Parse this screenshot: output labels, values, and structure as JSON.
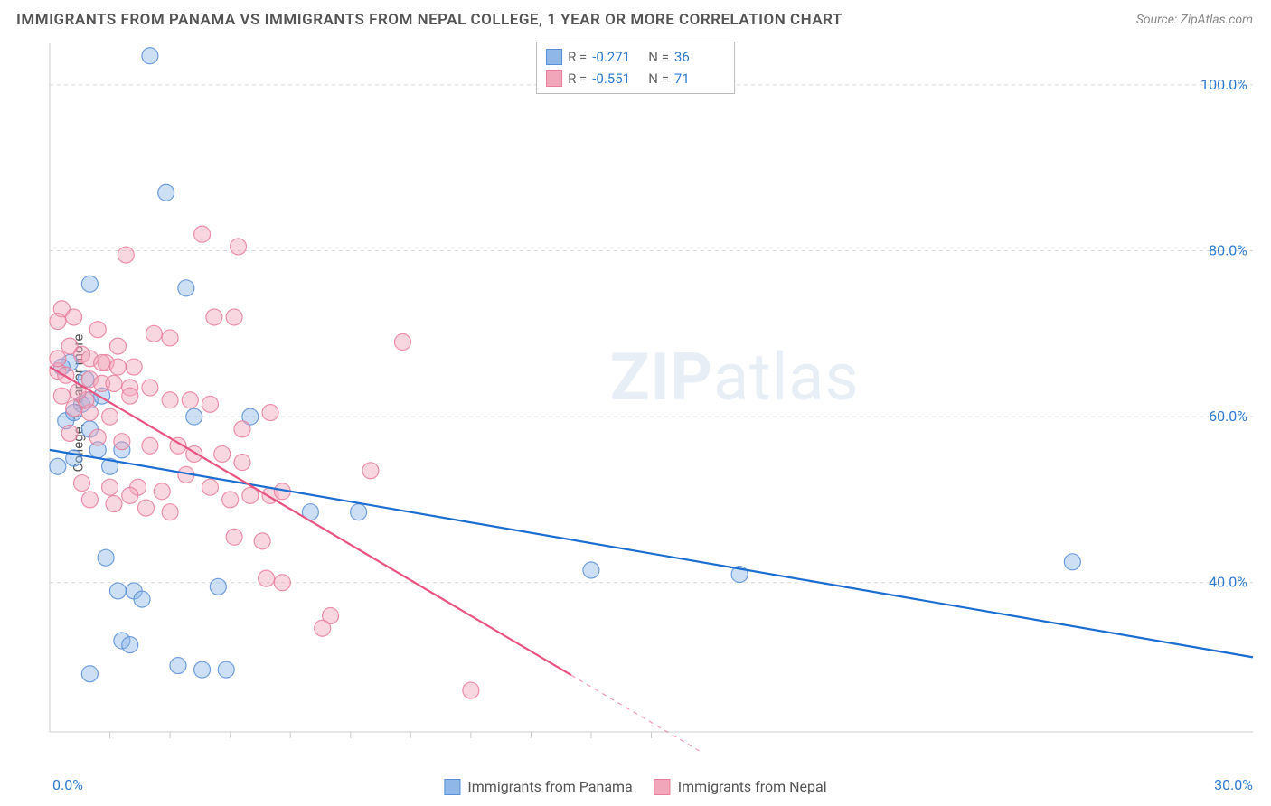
{
  "title": "IMMIGRANTS FROM PANAMA VS IMMIGRANTS FROM NEPAL COLLEGE, 1 YEAR OR MORE CORRELATION CHART",
  "source": "Source: ZipAtlas.com",
  "ylabel": "College, 1 year or more",
  "watermark_zip": "ZIP",
  "watermark_atlas": "atlas",
  "chart": {
    "type": "scatter",
    "xlim": [
      0,
      30
    ],
    "ylim": [
      22,
      105
    ],
    "y_ticks": [
      40,
      60,
      80,
      100
    ],
    "y_tick_labels": [
      "40.0%",
      "60.0%",
      "80.0%",
      "100.0%"
    ],
    "x_tick_left": "0.0%",
    "x_tick_right": "30.0%",
    "x_minor_ticks": [
      1.5,
      3,
      4.5,
      6,
      7.5,
      9,
      10.5,
      12,
      13.5,
      15
    ],
    "grid_color": "#d8d8d8",
    "axis_color": "#cccccc",
    "background": "#ffffff",
    "tick_label_color": "#2f7bd0",
    "label_fontsize": 15,
    "title_fontsize": 17,
    "marker_radius": 9,
    "marker_opacity": 0.45,
    "line_width": 2.2,
    "series": [
      {
        "name": "Immigrants from Panama",
        "color_fill": "#8fb8e8",
        "color_stroke": "#5a8fd6",
        "line_color": "#1c6dd0",
        "r": "-0.271",
        "n": "36",
        "regression": {
          "x1": 0,
          "y1": 56,
          "x2": 30,
          "y2": 31
        },
        "points": [
          [
            2.5,
            103.5
          ],
          [
            2.9,
            87
          ],
          [
            1.0,
            76
          ],
          [
            3.4,
            75.5
          ],
          [
            0.5,
            66.5
          ],
          [
            1.0,
            62
          ],
          [
            0.8,
            61.5
          ],
          [
            0.4,
            59.5
          ],
          [
            1.0,
            58.5
          ],
          [
            3.6,
            60
          ],
          [
            5.0,
            60
          ],
          [
            1.8,
            56
          ],
          [
            1.2,
            56
          ],
          [
            0.6,
            55
          ],
          [
            1.5,
            54
          ],
          [
            0.2,
            54
          ],
          [
            6.5,
            48.5
          ],
          [
            7.7,
            48.5
          ],
          [
            13.5,
            41.5
          ],
          [
            17.2,
            41
          ],
          [
            25.5,
            42.5
          ],
          [
            1.4,
            43
          ],
          [
            1.7,
            39
          ],
          [
            2.1,
            39
          ],
          [
            2.3,
            38
          ],
          [
            3.2,
            30
          ],
          [
            3.8,
            29.5
          ],
          [
            4.4,
            29.5
          ],
          [
            1.0,
            29
          ],
          [
            1.8,
            33
          ],
          [
            2.0,
            32.5
          ],
          [
            0.3,
            66
          ],
          [
            0.9,
            64.5
          ],
          [
            0.6,
            60.5
          ],
          [
            1.3,
            62.5
          ],
          [
            4.2,
            39.5
          ]
        ]
      },
      {
        "name": "Immigrants from Nepal",
        "color_fill": "#f2a6ba",
        "color_stroke": "#e87f9c",
        "line_color": "#e75480",
        "r": "-0.551",
        "n": "71",
        "regression": {
          "x1": 0,
          "y1": 66,
          "x2": 14,
          "y2": 26
        },
        "regression_dash_after": 13,
        "points": [
          [
            3.8,
            82
          ],
          [
            4.7,
            80.5
          ],
          [
            1.9,
            79.5
          ],
          [
            0.3,
            73
          ],
          [
            0.6,
            72
          ],
          [
            0.2,
            71.5
          ],
          [
            1.2,
            70.5
          ],
          [
            4.1,
            72
          ],
          [
            4.6,
            72
          ],
          [
            2.6,
            70
          ],
          [
            3.0,
            69.5
          ],
          [
            0.5,
            68.5
          ],
          [
            0.8,
            67.5
          ],
          [
            1.0,
            67
          ],
          [
            1.4,
            66.5
          ],
          [
            1.7,
            66
          ],
          [
            2.1,
            66
          ],
          [
            0.2,
            65.5
          ],
          [
            0.4,
            65
          ],
          [
            1.0,
            64.5
          ],
          [
            1.3,
            64
          ],
          [
            1.6,
            64
          ],
          [
            2.0,
            63.5
          ],
          [
            2.5,
            63.5
          ],
          [
            2.0,
            62.5
          ],
          [
            3.0,
            62
          ],
          [
            3.5,
            62
          ],
          [
            4.0,
            61.5
          ],
          [
            0.6,
            61
          ],
          [
            1.0,
            60.5
          ],
          [
            1.5,
            60
          ],
          [
            5.5,
            60.5
          ],
          [
            8.8,
            69
          ],
          [
            2.5,
            56.5
          ],
          [
            3.2,
            56.5
          ],
          [
            3.6,
            55.5
          ],
          [
            4.3,
            55.5
          ],
          [
            4.8,
            54.5
          ],
          [
            0.5,
            58
          ],
          [
            1.2,
            57.5
          ],
          [
            1.8,
            57
          ],
          [
            0.8,
            52
          ],
          [
            1.5,
            51.5
          ],
          [
            2.2,
            51.5
          ],
          [
            2.8,
            51
          ],
          [
            1.0,
            50
          ],
          [
            1.6,
            49.5
          ],
          [
            2.4,
            49
          ],
          [
            3.0,
            48.5
          ],
          [
            4.5,
            50
          ],
          [
            5.0,
            50.5
          ],
          [
            5.5,
            50.5
          ],
          [
            5.8,
            51
          ],
          [
            8.0,
            53.5
          ],
          [
            4.6,
            45.5
          ],
          [
            5.3,
            45
          ],
          [
            5.4,
            40.5
          ],
          [
            5.8,
            40
          ],
          [
            7.0,
            36
          ],
          [
            6.8,
            34.5
          ],
          [
            10.5,
            27
          ],
          [
            0.3,
            62.5
          ],
          [
            0.9,
            62
          ],
          [
            1.3,
            66.5
          ],
          [
            1.7,
            68.5
          ],
          [
            0.2,
            67
          ],
          [
            0.7,
            63
          ],
          [
            2.0,
            50.5
          ],
          [
            3.4,
            53
          ],
          [
            4.0,
            51.5
          ],
          [
            4.8,
            58.5
          ]
        ]
      }
    ]
  },
  "legend_bottom": {
    "panama": "Immigrants from Panama",
    "nepal": "Immigrants from Nepal"
  }
}
